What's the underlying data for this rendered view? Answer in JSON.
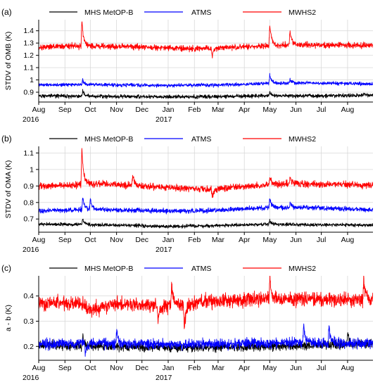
{
  "figure": {
    "month_labels": [
      "Aug",
      "Sep",
      "Oct",
      "Nov",
      "Dec",
      "Jan",
      "Feb",
      "Mar",
      "Apr",
      "May",
      "Jun",
      "Jul",
      "Aug"
    ],
    "year_labels": [
      "2016",
      "2017"
    ]
  },
  "chart_data": [
    {
      "type": "line",
      "panel_label": "(a)",
      "ylabel": "STDV of OMB (K)",
      "xlabel": "",
      "x_range": [
        "2016-08-01",
        "2017-08-31"
      ],
      "ylim": [
        0.82,
        1.49
      ],
      "yticks": [
        0.9,
        1.0,
        1.1,
        1.2,
        1.3,
        1.4
      ],
      "grid": true,
      "legend_position": "top",
      "series": [
        {
          "name": "MHS MetOP-B",
          "color": "#000000",
          "base": 0.87,
          "noise": 0.012,
          "points": [
            [
              "2016-08-01",
              0.87
            ],
            [
              "2016-09-15",
              0.868
            ],
            [
              "2016-11-01",
              0.866
            ],
            [
              "2017-01-01",
              0.862
            ],
            [
              "2017-03-01",
              0.864
            ],
            [
              "2017-05-01",
              0.872
            ],
            [
              "2017-06-15",
              0.87
            ],
            [
              "2017-08-31",
              0.874
            ]
          ],
          "spikes": [
            [
              "2016-09-22",
              0.91
            ],
            [
              "2017-05-01",
              0.9
            ],
            [
              "2017-08-20",
              0.89
            ]
          ]
        },
        {
          "name": "ATMS",
          "color": "#0000ff",
          "base": 0.965,
          "noise": 0.011,
          "points": [
            [
              "2016-08-01",
              0.96
            ],
            [
              "2016-10-01",
              0.962
            ],
            [
              "2017-01-01",
              0.955
            ],
            [
              "2017-03-01",
              0.958
            ],
            [
              "2017-05-01",
              0.972
            ],
            [
              "2017-06-15",
              0.975
            ],
            [
              "2017-08-31",
              0.968
            ]
          ],
          "spikes": [
            [
              "2016-09-22",
              1.0
            ],
            [
              "2017-05-01",
              1.04
            ],
            [
              "2017-05-25",
              1.0
            ]
          ]
        },
        {
          "name": "MWHS2",
          "color": "#ff0000",
          "base": 1.27,
          "noise": 0.018,
          "points": [
            [
              "2016-08-01",
              1.265
            ],
            [
              "2016-09-10",
              1.275
            ],
            [
              "2016-10-15",
              1.275
            ],
            [
              "2016-12-15",
              1.265
            ],
            [
              "2017-02-01",
              1.255
            ],
            [
              "2017-04-01",
              1.27
            ],
            [
              "2017-06-01",
              1.285
            ],
            [
              "2017-08-31",
              1.28
            ]
          ],
          "spikes": [
            [
              "2016-09-21",
              1.48
            ],
            [
              "2017-05-01",
              1.45
            ],
            [
              "2017-05-25",
              1.4
            ],
            [
              "2017-02-22",
              1.19
            ]
          ]
        }
      ]
    },
    {
      "type": "line",
      "panel_label": "(b)",
      "ylabel": "STDV of OMA (K)",
      "xlabel": "",
      "x_range": [
        "2016-08-01",
        "2017-08-31"
      ],
      "ylim": [
        0.62,
        1.14
      ],
      "yticks": [
        0.7,
        0.8,
        0.9,
        1.0,
        1.1
      ],
      "grid": true,
      "legend_position": "top",
      "series": [
        {
          "name": "MHS MetOP-B",
          "color": "#000000",
          "base": 0.665,
          "noise": 0.008,
          "points": [
            [
              "2016-08-01",
              0.668
            ],
            [
              "2016-10-01",
              0.666
            ],
            [
              "2017-01-01",
              0.655
            ],
            [
              "2017-03-01",
              0.66
            ],
            [
              "2017-05-01",
              0.668
            ],
            [
              "2017-08-31",
              0.662
            ]
          ],
          "spikes": [
            [
              "2016-09-22",
              0.7
            ],
            [
              "2017-05-01",
              0.69
            ]
          ]
        },
        {
          "name": "ATMS",
          "color": "#0000ff",
          "base": 0.755,
          "noise": 0.011,
          "points": [
            [
              "2016-08-01",
              0.75
            ],
            [
              "2016-10-01",
              0.758
            ],
            [
              "2017-01-01",
              0.748
            ],
            [
              "2017-03-01",
              0.752
            ],
            [
              "2017-05-01",
              0.768
            ],
            [
              "2017-06-15",
              0.77
            ],
            [
              "2017-08-31",
              0.755
            ]
          ],
          "spikes": [
            [
              "2016-09-22",
              0.83
            ],
            [
              "2016-10-01",
              0.82
            ],
            [
              "2017-05-01",
              0.83
            ],
            [
              "2017-05-25",
              0.8
            ]
          ]
        },
        {
          "name": "MWHS2",
          "color": "#ff0000",
          "base": 0.905,
          "noise": 0.015,
          "points": [
            [
              "2016-08-01",
              0.9
            ],
            [
              "2016-09-10",
              0.905
            ],
            [
              "2016-10-15",
              0.915
            ],
            [
              "2016-12-15",
              0.895
            ],
            [
              "2017-02-15",
              0.88
            ],
            [
              "2017-04-01",
              0.895
            ],
            [
              "2017-06-01",
              0.915
            ],
            [
              "2017-08-31",
              0.905
            ]
          ],
          "spikes": [
            [
              "2016-09-21",
              1.12
            ],
            [
              "2016-11-20",
              0.97
            ],
            [
              "2017-05-01",
              0.97
            ],
            [
              "2017-05-25",
              0.96
            ],
            [
              "2017-02-22",
              0.83
            ]
          ]
        }
      ]
    },
    {
      "type": "line",
      "panel_label": "(c)",
      "ylabel": "a - b (K)",
      "xlabel": "",
      "x_range": [
        "2016-08-01",
        "2017-08-31"
      ],
      "ylim": [
        0.145,
        0.48
      ],
      "yticks": [
        0.2,
        0.3,
        0.4
      ],
      "grid": true,
      "legend_position": "top",
      "series": [
        {
          "name": "MHS MetOP-B",
          "color": "#000000",
          "base": 0.2,
          "noise": 0.014,
          "points": [
            [
              "2016-08-01",
              0.205
            ],
            [
              "2016-10-01",
              0.202
            ],
            [
              "2017-01-01",
              0.195
            ],
            [
              "2017-04-01",
              0.198
            ],
            [
              "2017-08-31",
              0.21
            ]
          ],
          "spikes": [
            [
              "2017-08-01",
              0.25
            ],
            [
              "2016-09-22",
              0.24
            ]
          ]
        },
        {
          "name": "ATMS",
          "color": "#0000ff",
          "base": 0.21,
          "noise": 0.016,
          "points": [
            [
              "2016-08-01",
              0.21
            ],
            [
              "2016-10-01",
              0.212
            ],
            [
              "2017-01-01",
              0.208
            ],
            [
              "2017-04-01",
              0.21
            ],
            [
              "2017-06-01",
              0.215
            ],
            [
              "2017-08-31",
              0.212
            ]
          ],
          "spikes": [
            [
              "2017-06-10",
              0.28
            ],
            [
              "2017-07-10",
              0.28
            ],
            [
              "2016-11-01",
              0.26
            ],
            [
              "2016-09-25",
              0.17
            ]
          ]
        },
        {
          "name": "MWHS2",
          "color": "#ff0000",
          "base": 0.37,
          "noise": 0.022,
          "points": [
            [
              "2016-08-01",
              0.372
            ],
            [
              "2016-09-20",
              0.368
            ],
            [
              "2016-10-01",
              0.345
            ],
            [
              "2016-11-01",
              0.37
            ],
            [
              "2017-01-01",
              0.36
            ],
            [
              "2017-03-01",
              0.38
            ],
            [
              "2017-05-01",
              0.39
            ],
            [
              "2017-08-31",
              0.385
            ]
          ],
          "spikes": [
            [
              "2017-05-01",
              0.47
            ],
            [
              "2017-08-20",
              0.47
            ],
            [
              "2017-01-05",
              0.44
            ],
            [
              "2017-01-20",
              0.28
            ],
            [
              "2016-12-20",
              0.3
            ]
          ]
        }
      ]
    }
  ]
}
